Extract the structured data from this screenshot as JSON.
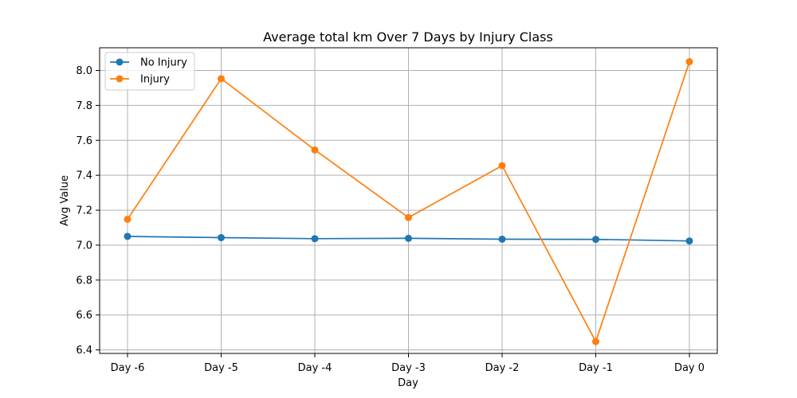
{
  "chart_data": {
    "type": "line",
    "title": "Average total km Over 7 Days by Injury Class",
    "xlabel": "Day",
    "ylabel": "Avg Value",
    "categories": [
      "Day -6",
      "Day -5",
      "Day -4",
      "Day -3",
      "Day -2",
      "Day -1",
      "Day 0"
    ],
    "ylim": [
      6.38,
      8.13
    ],
    "yticks": [
      "6.4",
      "6.6",
      "6.8",
      "7.0",
      "7.2",
      "7.4",
      "7.6",
      "7.8",
      "8.0"
    ],
    "grid": true,
    "legend_position": "upper-left",
    "series": [
      {
        "name": "No Injury",
        "color": "#1f77b4",
        "marker": "circle",
        "values": [
          7.05,
          7.043,
          7.037,
          7.039,
          7.034,
          7.033,
          7.024
        ]
      },
      {
        "name": "Injury",
        "color": "#ff7f0e",
        "marker": "circle",
        "values": [
          7.148,
          7.953,
          7.545,
          7.158,
          7.455,
          6.448,
          8.05
        ]
      }
    ]
  }
}
